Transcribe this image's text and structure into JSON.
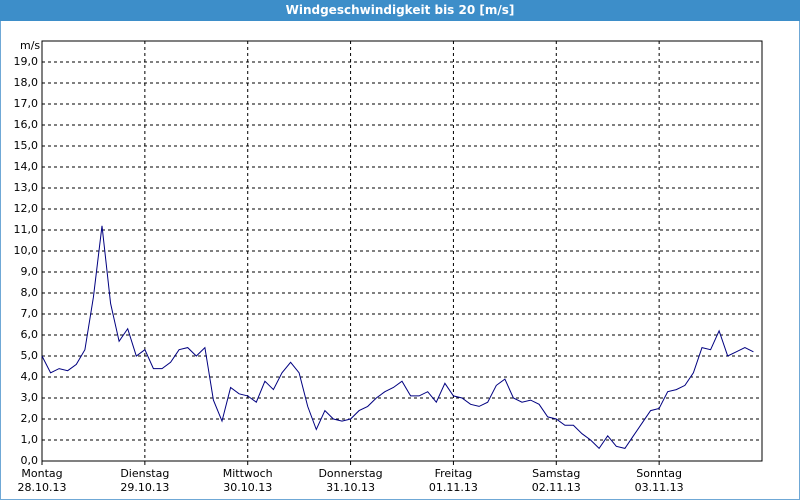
{
  "chart_data": {
    "type": "line",
    "title": "Windgeschwindigkeit bis 20 [m/s]",
    "ylabel": "m/s",
    "x": [
      0,
      2,
      4,
      6,
      8,
      10,
      12,
      14,
      16,
      18,
      20,
      22,
      24,
      26,
      28,
      30,
      32,
      34,
      36,
      38,
      40,
      42,
      44,
      46,
      48,
      50,
      52,
      54,
      56,
      58,
      60,
      62,
      64,
      66,
      68,
      70,
      72,
      74,
      76,
      78,
      80,
      82,
      84,
      86,
      88,
      90,
      92,
      94,
      96,
      98,
      100,
      102,
      104,
      106,
      108,
      110,
      112,
      114,
      116,
      118,
      120,
      122,
      124,
      126,
      128,
      130,
      132,
      134,
      136,
      138,
      140,
      142,
      144,
      146,
      148,
      150,
      152,
      154,
      156,
      158,
      160,
      162,
      164,
      166
    ],
    "series": [
      {
        "name": "Windgeschwindigkeit",
        "color": "#000080",
        "values": [
          5.0,
          4.2,
          4.4,
          4.3,
          4.6,
          5.3,
          7.8,
          11.2,
          7.5,
          5.7,
          6.3,
          5.0,
          5.3,
          4.4,
          4.4,
          4.7,
          5.3,
          5.4,
          5.0,
          5.4,
          2.9,
          1.9,
          3.5,
          3.2,
          3.1,
          2.8,
          3.8,
          3.4,
          4.2,
          4.7,
          4.2,
          2.6,
          1.5,
          2.4,
          2.0,
          1.9,
          2.0,
          2.4,
          2.6,
          3.0,
          3.3,
          3.5,
          3.8,
          3.1,
          3.1,
          3.3,
          2.8,
          3.7,
          3.1,
          3.0,
          2.7,
          2.6,
          2.8,
          3.6,
          3.9,
          3.0,
          2.8,
          2.9,
          2.7,
          2.1,
          2.0,
          1.7,
          1.7,
          1.3,
          1.0,
          0.6,
          1.2,
          0.7,
          0.6,
          1.2,
          1.8,
          2.4,
          2.5,
          3.3,
          3.4,
          3.6,
          4.2,
          5.4,
          5.3,
          6.2,
          5.0,
          5.2,
          5.4,
          5.2
        ]
      }
    ],
    "xlim": [
      0,
      168
    ],
    "xticks": [
      {
        "value": 0,
        "label": "Montag\n28.10.13"
      },
      {
        "value": 24,
        "label": "Dienstag\n29.10.13"
      },
      {
        "value": 48,
        "label": "Mittwoch\n30.10.13"
      },
      {
        "value": 72,
        "label": "Donnerstag\n31.10.13"
      },
      {
        "value": 96,
        "label": "Freitag\n01.11.13"
      },
      {
        "value": 120,
        "label": "Samstag\n02.11.13"
      },
      {
        "value": 144,
        "label": "Sonntag\n03.11.13"
      }
    ],
    "ylim": [
      0,
      20
    ],
    "yticks": [
      {
        "value": 0,
        "label": "0,0"
      },
      {
        "value": 1,
        "label": "1,0"
      },
      {
        "value": 2,
        "label": "2,0"
      },
      {
        "value": 3,
        "label": "3,0"
      },
      {
        "value": 4,
        "label": "4,0"
      },
      {
        "value": 5,
        "label": "5,0"
      },
      {
        "value": 6,
        "label": "6,0"
      },
      {
        "value": 7,
        "label": "7,0"
      },
      {
        "value": 8,
        "label": "8,0"
      },
      {
        "value": 9,
        "label": "9,0"
      },
      {
        "value": 10,
        "label": "10,0"
      },
      {
        "value": 11,
        "label": "11,0"
      },
      {
        "value": 12,
        "label": "12,0"
      },
      {
        "value": 13,
        "label": "13,0"
      },
      {
        "value": 14,
        "label": "14,0"
      },
      {
        "value": 15,
        "label": "15,0"
      },
      {
        "value": 16,
        "label": "16,0"
      },
      {
        "value": 17,
        "label": "17,0"
      },
      {
        "value": 18,
        "label": "18,0"
      },
      {
        "value": 19,
        "label": "19,0"
      }
    ],
    "grid": true
  }
}
